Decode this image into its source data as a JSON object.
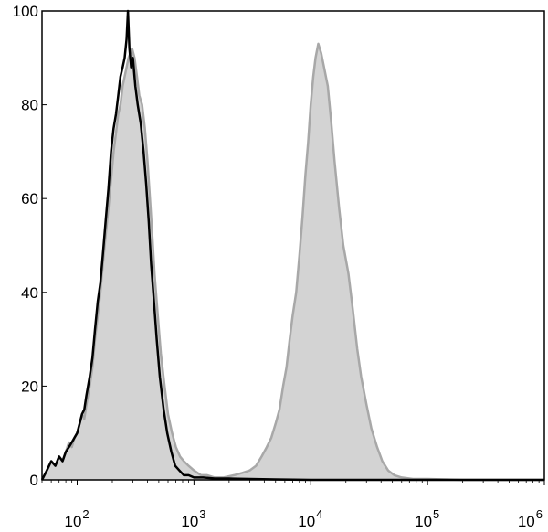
{
  "chart_data": {
    "type": "area",
    "title": "",
    "xlabel": "",
    "ylabel": "",
    "x_scale": "log",
    "xlim": [
      50,
      1000000
    ],
    "ylim": [
      0,
      100
    ],
    "grid": false,
    "legend": "none",
    "x_ticks": [
      {
        "value": 100,
        "base": "10",
        "exp": "2"
      },
      {
        "value": 1000,
        "base": "10",
        "exp": "3"
      },
      {
        "value": 10000,
        "base": "10",
        "exp": "4"
      },
      {
        "value": 100000,
        "base": "10",
        "exp": "5"
      },
      {
        "value": 1000000,
        "base": "10",
        "exp": "6"
      }
    ],
    "y_ticks": [
      "0",
      "20",
      "40",
      "60",
      "80",
      "100"
    ],
    "series": [
      {
        "style": "filled",
        "fill": "#d3d3d3",
        "stroke": "#a8a8a8",
        "points": [
          [
            50,
            0
          ],
          [
            55,
            2
          ],
          [
            60,
            4
          ],
          [
            65,
            3
          ],
          [
            70,
            5
          ],
          [
            75,
            4
          ],
          [
            80,
            6
          ],
          [
            85,
            8
          ],
          [
            90,
            7
          ],
          [
            95,
            9
          ],
          [
            100,
            10
          ],
          [
            105,
            12
          ],
          [
            110,
            14
          ],
          [
            115,
            13
          ],
          [
            120,
            16
          ],
          [
            128,
            20
          ],
          [
            135,
            24
          ],
          [
            142,
            30
          ],
          [
            150,
            35
          ],
          [
            158,
            40
          ],
          [
            166,
            46
          ],
          [
            175,
            52
          ],
          [
            185,
            58
          ],
          [
            195,
            64
          ],
          [
            205,
            70
          ],
          [
            215,
            74
          ],
          [
            225,
            78
          ],
          [
            235,
            80
          ],
          [
            245,
            84
          ],
          [
            255,
            86
          ],
          [
            265,
            88
          ],
          [
            275,
            90
          ],
          [
            285,
            91
          ],
          [
            295,
            92
          ],
          [
            310,
            90
          ],
          [
            325,
            86
          ],
          [
            340,
            82
          ],
          [
            360,
            80
          ],
          [
            380,
            75
          ],
          [
            400,
            68
          ],
          [
            420,
            60
          ],
          [
            440,
            52
          ],
          [
            460,
            44
          ],
          [
            490,
            35
          ],
          [
            520,
            27
          ],
          [
            560,
            20
          ],
          [
            600,
            14
          ],
          [
            650,
            10
          ],
          [
            700,
            7
          ],
          [
            760,
            5
          ],
          [
            820,
            4
          ],
          [
            900,
            3
          ],
          [
            1000,
            2
          ],
          [
            1150,
            1
          ],
          [
            1300,
            1
          ],
          [
            1500,
            0.5
          ],
          [
            1800,
            0.5
          ],
          [
            2200,
            1
          ],
          [
            2600,
            1.5
          ],
          [
            3000,
            2
          ],
          [
            3400,
            3
          ],
          [
            3800,
            5
          ],
          [
            4200,
            7
          ],
          [
            4600,
            9
          ],
          [
            5000,
            12
          ],
          [
            5400,
            15
          ],
          [
            5800,
            20
          ],
          [
            6200,
            24
          ],
          [
            6600,
            30
          ],
          [
            7000,
            35
          ],
          [
            7500,
            40
          ],
          [
            8000,
            48
          ],
          [
            8500,
            56
          ],
          [
            9000,
            65
          ],
          [
            9500,
            72
          ],
          [
            10000,
            80
          ],
          [
            10500,
            86
          ],
          [
            11000,
            90
          ],
          [
            11600,
            93
          ],
          [
            12300,
            91
          ],
          [
            13000,
            88
          ],
          [
            14000,
            84
          ],
          [
            15000,
            76
          ],
          [
            16000,
            68
          ],
          [
            17500,
            58
          ],
          [
            19000,
            50
          ],
          [
            21000,
            44
          ],
          [
            23000,
            36
          ],
          [
            25000,
            28
          ],
          [
            27000,
            22
          ],
          [
            30000,
            16
          ],
          [
            33000,
            11
          ],
          [
            37000,
            7
          ],
          [
            41000,
            4
          ],
          [
            46000,
            2
          ],
          [
            52000,
            1
          ],
          [
            60000,
            0.5
          ],
          [
            75000,
            0.2
          ],
          [
            100000,
            0.2
          ],
          [
            200000,
            0
          ],
          [
            1000000,
            0
          ]
        ]
      },
      {
        "style": "line",
        "stroke": "#000000",
        "points": [
          [
            50,
            0
          ],
          [
            55,
            2
          ],
          [
            60,
            4
          ],
          [
            65,
            3
          ],
          [
            70,
            5
          ],
          [
            75,
            4
          ],
          [
            80,
            6
          ],
          [
            85,
            7
          ],
          [
            90,
            8
          ],
          [
            95,
            9
          ],
          [
            100,
            10
          ],
          [
            105,
            12
          ],
          [
            110,
            14
          ],
          [
            115,
            15
          ],
          [
            120,
            18
          ],
          [
            128,
            22
          ],
          [
            135,
            26
          ],
          [
            142,
            32
          ],
          [
            150,
            38
          ],
          [
            158,
            42
          ],
          [
            166,
            48
          ],
          [
            175,
            55
          ],
          [
            185,
            62
          ],
          [
            195,
            70
          ],
          [
            205,
            75
          ],
          [
            215,
            78
          ],
          [
            225,
            82
          ],
          [
            235,
            86
          ],
          [
            245,
            88
          ],
          [
            255,
            90
          ],
          [
            265,
            94
          ],
          [
            272,
            100
          ],
          [
            280,
            92
          ],
          [
            290,
            88
          ],
          [
            300,
            90
          ],
          [
            315,
            84
          ],
          [
            330,
            80
          ],
          [
            350,
            76
          ],
          [
            370,
            70
          ],
          [
            390,
            63
          ],
          [
            410,
            55
          ],
          [
            430,
            46
          ],
          [
            455,
            38
          ],
          [
            480,
            30
          ],
          [
            510,
            22
          ],
          [
            550,
            15
          ],
          [
            590,
            10
          ],
          [
            640,
            6
          ],
          [
            690,
            3
          ],
          [
            750,
            2
          ],
          [
            820,
            1
          ],
          [
            900,
            1
          ],
          [
            1000,
            0.5
          ],
          [
            1200,
            0.5
          ],
          [
            1500,
            0.3
          ],
          [
            2000,
            0.3
          ],
          [
            3000,
            0.2
          ],
          [
            5000,
            0.1
          ],
          [
            10000,
            0
          ],
          [
            1000000,
            0
          ]
        ]
      }
    ]
  }
}
